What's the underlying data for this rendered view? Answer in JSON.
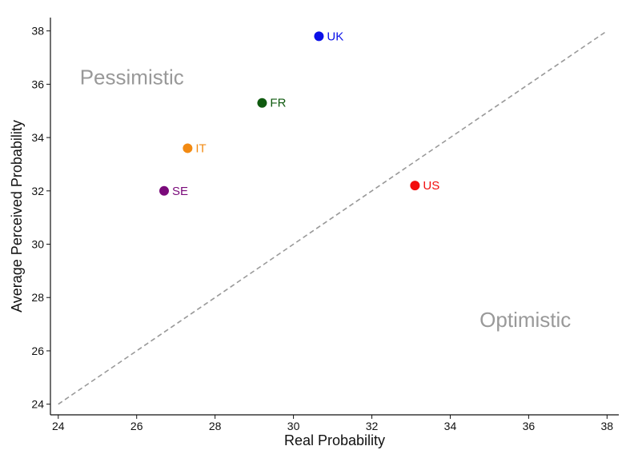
{
  "chart_data": {
    "type": "scatter",
    "xlabel": "Real Probability",
    "ylabel": "Average Perceived Probability",
    "xlim": [
      23.8,
      38.3
    ],
    "ylim": [
      23.6,
      38.5
    ],
    "xticks": [
      24,
      26,
      28,
      30,
      32,
      34,
      36,
      38
    ],
    "yticks": [
      24,
      26,
      28,
      30,
      32,
      34,
      36,
      38
    ],
    "grid": false,
    "reference_line": {
      "style": "dashed",
      "color": "#999999",
      "from": [
        24,
        24
      ],
      "to": [
        38,
        38
      ]
    },
    "points": [
      {
        "label": "UK",
        "x": 30.65,
        "y": 37.8,
        "color": "#0a10e8"
      },
      {
        "label": "FR",
        "x": 29.2,
        "y": 35.3,
        "color": "#0f5a0f"
      },
      {
        "label": "IT",
        "x": 27.3,
        "y": 33.6,
        "color": "#f28a12"
      },
      {
        "label": "SE",
        "x": 26.7,
        "y": 32.0,
        "color": "#7a0a7a"
      },
      {
        "label": "US",
        "x": 33.1,
        "y": 32.2,
        "color": "#f20c0c"
      }
    ],
    "annotations": [
      {
        "text": "Pessimistic",
        "x": 24.55,
        "y": 36.0,
        "color": "#999999"
      },
      {
        "text": "Optimistic",
        "x": 34.75,
        "y": 26.9,
        "color": "#999999"
      }
    ]
  }
}
